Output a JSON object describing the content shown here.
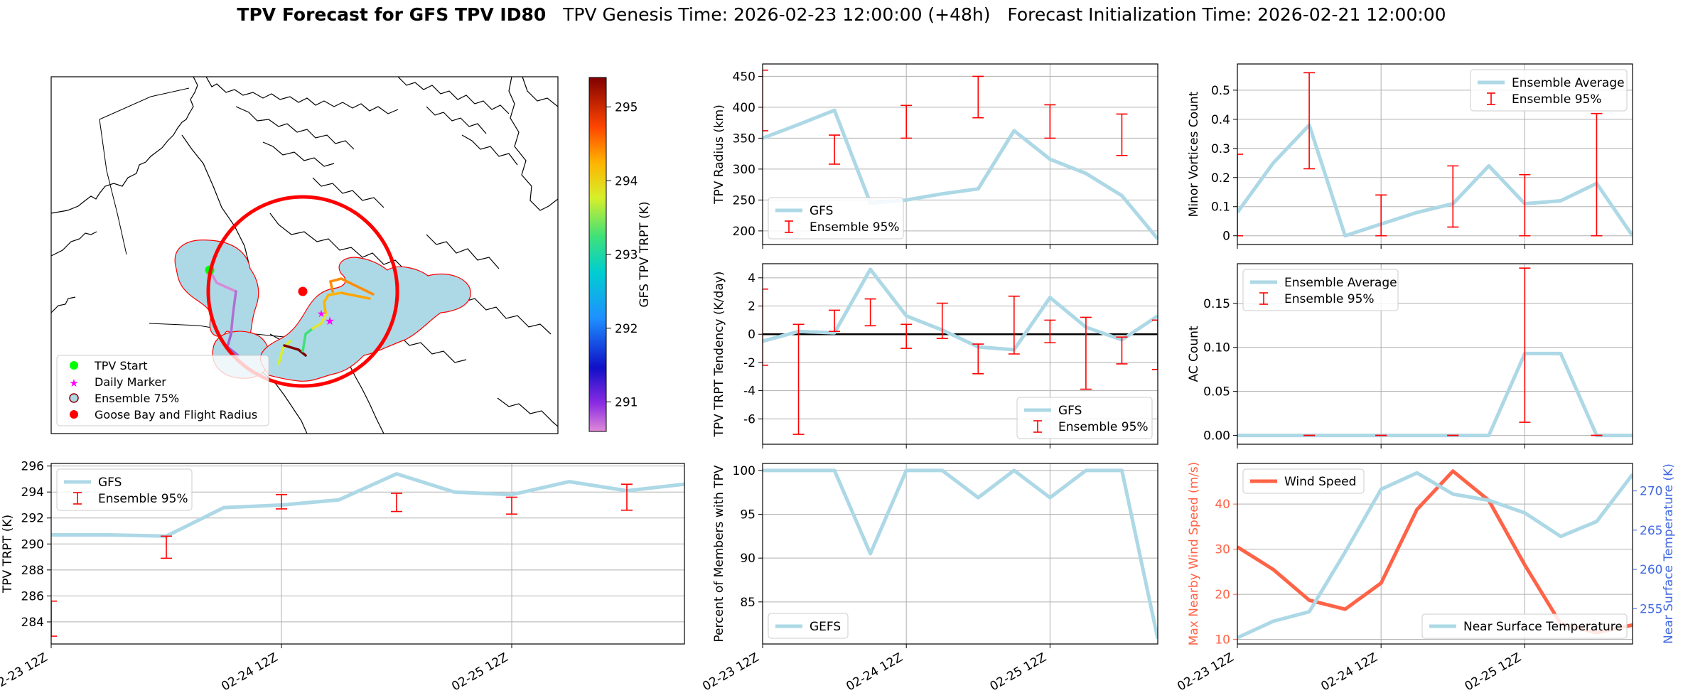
{
  "figure": {
    "title_bold": "TPV Forecast for GFS TPV ID80",
    "title_genesis": "TPV Genesis Time: 2026-02-23 12:00:00 (+48h)",
    "title_init": "Forecast Initialization Time: 2026-02-21 12:00:00",
    "colors": {
      "gfs": "#add8e6",
      "ensemble": "#ff0000",
      "wind": "#ff6347",
      "temp_axis": "#4169e1"
    }
  },
  "map": {
    "legend": [
      "TPV Start",
      "Daily Marker",
      "Ensemble 75%",
      "Goose Bay and Flight Radius"
    ],
    "colorbar": {
      "label": "GFS TPV TRPT (K)",
      "ticks": [
        291,
        292,
        293,
        294,
        295
      ],
      "range": [
        290.6,
        295.4
      ]
    }
  },
  "chart_data": [
    {
      "id": "radius",
      "type": "line",
      "ylabel": "TPV Radius (km)",
      "ylim": [
        178,
        470
      ],
      "yticks": [
        200,
        250,
        300,
        350,
        400,
        450
      ],
      "xlim": [
        0,
        33
      ],
      "xticks": [
        {
          "x": 0,
          "label": "02-23 12Z"
        },
        {
          "x": 12,
          "label": "02-24 12Z"
        },
        {
          "x": 24,
          "label": "02-25 12Z"
        }
      ],
      "show_xlabels": false,
      "hline": null,
      "series": [
        {
          "name": "GFS",
          "x": [
            0,
            3,
            6,
            9,
            12,
            15,
            18,
            21,
            24,
            27,
            30,
            33
          ],
          "y": [
            350,
            372,
            395,
            245,
            250,
            260,
            268,
            362,
            316,
            293,
            257,
            187
          ]
        }
      ],
      "errorbars": {
        "name": "Ensemble 95%",
        "x": [
          0,
          6,
          12,
          18,
          24,
          30
        ],
        "low": [
          362,
          308,
          350,
          383,
          350,
          322
        ],
        "high": [
          460,
          355,
          403,
          450,
          404,
          389
        ]
      },
      "legend_loc": "lower-left"
    },
    {
      "id": "minor",
      "type": "line",
      "ylabel": "Minor Vortices Count",
      "ylim": [
        -0.03,
        0.59
      ],
      "yticks": [
        0.0,
        0.1,
        0.2,
        0.3,
        0.4,
        0.5
      ],
      "xlim": [
        0,
        33
      ],
      "xticks": [
        {
          "x": 0,
          "label": "02-23 12Z"
        },
        {
          "x": 12,
          "label": "02-24 12Z"
        },
        {
          "x": 24,
          "label": "02-25 12Z"
        }
      ],
      "show_xlabels": false,
      "hline": null,
      "series": [
        {
          "name": "Ensemble Average",
          "x": [
            0,
            3,
            6,
            9,
            12,
            15,
            18,
            21,
            24,
            27,
            30,
            33
          ],
          "y": [
            0.08,
            0.25,
            0.38,
            0.0,
            0.04,
            0.08,
            0.11,
            0.24,
            0.11,
            0.12,
            0.18,
            0.0
          ]
        }
      ],
      "errorbars": {
        "name": "Ensemble 95%",
        "x": [
          0,
          6,
          12,
          18,
          24,
          30
        ],
        "low": [
          0.0,
          0.23,
          0.0,
          0.03,
          0.0,
          0.0
        ],
        "high": [
          0.28,
          0.56,
          0.14,
          0.24,
          0.21,
          0.42
        ]
      },
      "legend_loc": "upper-right"
    },
    {
      "id": "tendency",
      "type": "line",
      "ylabel": "TPV TRPT Tendency (K/day)",
      "ylim": [
        -7.8,
        5.0
      ],
      "yticks": [
        -6,
        -4,
        -2,
        0,
        2,
        4
      ],
      "xlim": [
        0,
        33
      ],
      "xticks": [
        {
          "x": 0,
          "label": "02-23 12Z"
        },
        {
          "x": 12,
          "label": "02-24 12Z"
        },
        {
          "x": 24,
          "label": "02-25 12Z"
        }
      ],
      "show_xlabels": false,
      "hline": 0,
      "series": [
        {
          "name": "GFS",
          "x": [
            0,
            3,
            6,
            9,
            12,
            15,
            18,
            21,
            24,
            27,
            30,
            33
          ],
          "y": [
            -0.5,
            0.2,
            0.1,
            4.6,
            1.3,
            0.3,
            -0.9,
            -1.1,
            2.6,
            0.5,
            -0.4,
            1.3
          ]
        }
      ],
      "errorbars": {
        "name": "Ensemble 95%",
        "x": [
          0,
          3,
          6,
          9,
          12,
          15,
          18,
          21,
          24,
          27,
          30,
          33
        ],
        "low": [
          -2.2,
          -7.1,
          0.2,
          0.6,
          -1.0,
          -0.3,
          -2.8,
          -1.4,
          -0.6,
          -3.9,
          -2.1,
          -2.5
        ],
        "high": [
          3.2,
          0.7,
          1.7,
          2.5,
          0.7,
          2.2,
          -0.7,
          2.7,
          1.0,
          1.2,
          -0.2,
          1.0
        ]
      },
      "legend_loc": "lower-right"
    },
    {
      "id": "ac",
      "type": "line",
      "ylabel": "AC Count",
      "ylim": [
        -0.01,
        0.195
      ],
      "yticks": [
        0.0,
        0.05,
        0.1,
        0.15
      ],
      "ytick_labels": [
        "0.00",
        "0.05",
        "0.10",
        "0.15"
      ],
      "xlim": [
        0,
        33
      ],
      "xticks": [
        {
          "x": 0,
          "label": "02-23 12Z"
        },
        {
          "x": 12,
          "label": "02-24 12Z"
        },
        {
          "x": 24,
          "label": "02-25 12Z"
        }
      ],
      "show_xlabels": false,
      "hline": null,
      "series": [
        {
          "name": "Ensemble Average",
          "x": [
            0,
            3,
            6,
            9,
            12,
            15,
            18,
            21,
            24,
            27,
            30,
            33
          ],
          "y": [
            0.0,
            0.0,
            0.0,
            0.0,
            0.0,
            0.0,
            0.0,
            0.0,
            0.093,
            0.093,
            0.0,
            0.0
          ]
        }
      ],
      "errorbars": {
        "name": "Ensemble 95%",
        "x": [
          6,
          12,
          18,
          24,
          30
        ],
        "low": [
          0.0,
          0.0,
          0.0,
          0.015,
          0.0
        ],
        "high": [
          0.0,
          0.0,
          0.0,
          0.19,
          0.0
        ]
      },
      "legend_loc": "upper-left"
    },
    {
      "id": "trpt",
      "type": "line",
      "ylabel": "TPV TRPT (K)",
      "ylim": [
        282.3,
        296.2
      ],
      "yticks": [
        284,
        286,
        288,
        290,
        292,
        294,
        296
      ],
      "xlim": [
        0,
        33
      ],
      "xticks": [
        {
          "x": 0,
          "label": "02-23 12Z"
        },
        {
          "x": 12,
          "label": "02-24 12Z"
        },
        {
          "x": 24,
          "label": "02-25 12Z"
        }
      ],
      "show_xlabels": true,
      "hline": null,
      "series": [
        {
          "name": "GFS",
          "x": [
            0,
            3,
            6,
            9,
            12,
            15,
            18,
            21,
            24,
            27,
            30,
            33
          ],
          "y": [
            290.7,
            290.7,
            290.6,
            292.8,
            293.0,
            293.4,
            295.4,
            294.0,
            293.8,
            294.8,
            294.1,
            294.6
          ]
        }
      ],
      "errorbars": {
        "name": "Ensemble 95%",
        "x": [
          0,
          6,
          12,
          18,
          24,
          30
        ],
        "low": [
          282.9,
          288.9,
          292.7,
          292.5,
          292.3,
          292.6
        ],
        "high": [
          285.6,
          290.6,
          293.8,
          293.9,
          293.6,
          294.6
        ]
      },
      "legend_loc": "upper-left"
    },
    {
      "id": "percent",
      "type": "line",
      "ylabel": "Percent of Members with TPV",
      "ylim": [
        80.2,
        100.8
      ],
      "yticks": [
        85,
        90,
        95,
        100
      ],
      "xlim": [
        0,
        33
      ],
      "xticks": [
        {
          "x": 0,
          "label": "02-23 12Z"
        },
        {
          "x": 12,
          "label": "02-24 12Z"
        },
        {
          "x": 24,
          "label": "02-25 12Z"
        }
      ],
      "show_xlabels": true,
      "hline": null,
      "series": [
        {
          "name": "GEFS",
          "x": [
            0,
            3,
            6,
            9,
            12,
            15,
            18,
            21,
            24,
            27,
            30,
            33
          ],
          "y": [
            100,
            100,
            100,
            90.5,
            100,
            100,
            96.9,
            100,
            96.9,
            100,
            100,
            80.8
          ]
        }
      ],
      "errorbars": null,
      "legend_loc": "lower-left"
    },
    {
      "id": "wind",
      "type": "line",
      "ylabel": "Max Nearby Wind Speed (m/s)",
      "ylim": [
        9,
        49
      ],
      "yticks": [
        10,
        20,
        30,
        40
      ],
      "xlim": [
        0,
        33
      ],
      "xticks": [
        {
          "x": 0,
          "label": "02-23 12Z"
        },
        {
          "x": 12,
          "label": "02-24 12Z"
        },
        {
          "x": 24,
          "label": "02-25 12Z"
        }
      ],
      "show_xlabels": true,
      "hline": null,
      "series": [
        {
          "name": "Wind Speed",
          "axis": "left",
          "x": [
            0,
            3,
            6,
            9,
            12,
            15,
            18,
            21,
            24,
            27,
            30,
            33
          ],
          "y": [
            30.5,
            25.5,
            18.7,
            16.7,
            22.5,
            38.8,
            47.3,
            40.8,
            26.5,
            13.5,
            11.5,
            13.2
          ]
        },
        {
          "name": "Near Surface Temperature",
          "axis": "right",
          "x": [
            0,
            3,
            6,
            9,
            12,
            15,
            18,
            21,
            24,
            27,
            30,
            33
          ],
          "y": [
            251.3,
            253.4,
            254.6,
            262.2,
            270.2,
            272.3,
            269.6,
            268.8,
            267.2,
            264.2,
            266.1,
            272.1
          ]
        }
      ],
      "y2label": "Near Surface Temperature (K)",
      "y2lim": [
        250.5,
        273.5
      ],
      "y2ticks": [
        255,
        260,
        265,
        270
      ],
      "errorbars": null,
      "legend_left": "Wind Speed",
      "legend_right": "Near Surface Temperature"
    }
  ]
}
